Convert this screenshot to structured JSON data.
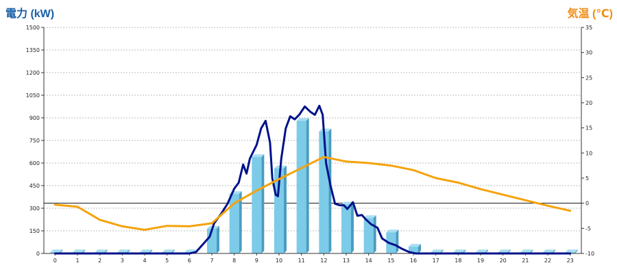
{
  "chart_data": {
    "type": "bar",
    "left_axis_title": "電力 (kW)",
    "right_axis_title": "気温 (℃)",
    "categories": [
      "0",
      "1",
      "2",
      "3",
      "4",
      "5",
      "6",
      "7",
      "8",
      "9",
      "10",
      "11",
      "12",
      "13",
      "14",
      "15",
      "16",
      "17",
      "18",
      "19",
      "20",
      "21",
      "22",
      "23"
    ],
    "ylim_left": [
      0,
      1500
    ],
    "ylim_right": [
      -10,
      35
    ],
    "left_ticks": [
      "0",
      "150",
      "300",
      "450",
      "600",
      "750",
      "900",
      "1050",
      "1200",
      "1350",
      "1500"
    ],
    "right_ticks": [
      "-10",
      "-5",
      "0",
      "5",
      "10",
      "15",
      "20",
      "25",
      "30",
      "35"
    ],
    "reference_line_right": 0,
    "grid": "horizontal dashed",
    "colors": {
      "bars": "#7ccbe8",
      "bars_dark": "#4a9cc0",
      "power_line": "#00118a",
      "temp_line": "#f5a20a",
      "left_axis_title": "#1a5fa8",
      "right_axis_title": "#f08c14"
    },
    "series": [
      {
        "kind": "bar",
        "axis": "left",
        "values": [
          8,
          8,
          8,
          8,
          8,
          8,
          8,
          165,
          395,
          640,
          565,
          880,
          810,
          325,
          235,
          140,
          45,
          8,
          8,
          8,
          8,
          8,
          8,
          8
        ]
      },
      {
        "kind": "line",
        "axis": "left",
        "points": [
          [
            0,
            0
          ],
          [
            1,
            0
          ],
          [
            2,
            0
          ],
          [
            3,
            0
          ],
          [
            4,
            0
          ],
          [
            5,
            0
          ],
          [
            6,
            0
          ],
          [
            6.3,
            10
          ],
          [
            6.6,
            60
          ],
          [
            6.9,
            110
          ],
          [
            7.1,
            200
          ],
          [
            7.4,
            260
          ],
          [
            7.7,
            330
          ],
          [
            8.0,
            430
          ],
          [
            8.2,
            470
          ],
          [
            8.4,
            590
          ],
          [
            8.55,
            530
          ],
          [
            8.7,
            630
          ],
          [
            9.0,
            720
          ],
          [
            9.2,
            830
          ],
          [
            9.4,
            880
          ],
          [
            9.6,
            735
          ],
          [
            9.7,
            500
          ],
          [
            9.85,
            390
          ],
          [
            9.95,
            380
          ],
          [
            10.1,
            630
          ],
          [
            10.3,
            830
          ],
          [
            10.5,
            910
          ],
          [
            10.7,
            890
          ],
          [
            10.9,
            920
          ],
          [
            11.15,
            975
          ],
          [
            11.4,
            940
          ],
          [
            11.6,
            920
          ],
          [
            11.8,
            980
          ],
          [
            11.95,
            920
          ],
          [
            12.1,
            600
          ],
          [
            12.3,
            450
          ],
          [
            12.5,
            330
          ],
          [
            12.7,
            320
          ],
          [
            12.9,
            320
          ],
          [
            13.05,
            295
          ],
          [
            13.3,
            340
          ],
          [
            13.5,
            250
          ],
          [
            13.7,
            255
          ],
          [
            13.85,
            230
          ],
          [
            14.1,
            195
          ],
          [
            14.4,
            170
          ],
          [
            14.6,
            100
          ],
          [
            14.9,
            70
          ],
          [
            15.2,
            55
          ],
          [
            15.5,
            30
          ],
          [
            15.8,
            10
          ],
          [
            16.1,
            0
          ],
          [
            17,
            0
          ],
          [
            18,
            0
          ],
          [
            19,
            0
          ],
          [
            20,
            0
          ],
          [
            21,
            0
          ],
          [
            22,
            0
          ],
          [
            23,
            0
          ]
        ]
      },
      {
        "kind": "line",
        "axis": "right",
        "points": [
          [
            0,
            -0.3
          ],
          [
            1,
            -0.7
          ],
          [
            2,
            -3.3
          ],
          [
            3,
            -4.6
          ],
          [
            4,
            -5.3
          ],
          [
            5,
            -4.5
          ],
          [
            6,
            -4.6
          ],
          [
            7,
            -4.0
          ],
          [
            8,
            0.0
          ],
          [
            9,
            2.5
          ],
          [
            10,
            4.8
          ],
          [
            11,
            7.0
          ],
          [
            12,
            9.2
          ],
          [
            13,
            8.3
          ],
          [
            14,
            8.0
          ],
          [
            15,
            7.5
          ],
          [
            16,
            6.6
          ],
          [
            17,
            5.0
          ],
          [
            18,
            4.1
          ],
          [
            19,
            2.8
          ],
          [
            20,
            1.7
          ],
          [
            21,
            0.6
          ],
          [
            22,
            -0.5
          ],
          [
            23,
            -1.5
          ]
        ]
      }
    ]
  }
}
